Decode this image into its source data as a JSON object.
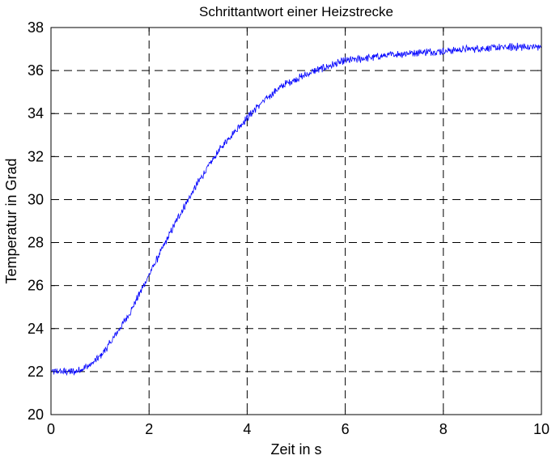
{
  "chart_data": {
    "type": "line",
    "title": "Schrittantwort einer Heizstrecke",
    "xlabel": "Zeit in s",
    "ylabel": "Temperatur in Grad",
    "xlim": [
      0,
      10
    ],
    "ylim": [
      20,
      38
    ],
    "xticks": [
      0,
      2,
      4,
      6,
      8,
      10
    ],
    "xtick_labels": [
      "0",
      "2",
      "4",
      "6",
      "8",
      "10"
    ],
    "yticks": [
      20,
      22,
      24,
      26,
      28,
      30,
      32,
      34,
      36,
      38
    ],
    "ytick_labels": [
      "20",
      "22",
      "24",
      "26",
      "28",
      "30",
      "32",
      "34",
      "36",
      "38"
    ],
    "grid": true,
    "legend": false,
    "series": [
      {
        "color": "#0000ff",
        "x": [
          0.0,
          0.5,
          0.8,
          1.0,
          1.2,
          1.4,
          1.6,
          1.8,
          2.0,
          2.2,
          2.4,
          2.6,
          2.8,
          3.0,
          3.2,
          3.4,
          3.6,
          3.8,
          4.0,
          4.2,
          4.4,
          4.6,
          4.8,
          5.0,
          5.2,
          5.4,
          5.6,
          5.8,
          6.0,
          6.5,
          7.0,
          7.5,
          8.0,
          8.5,
          9.0,
          9.5,
          10.0
        ],
        "y": [
          22.0,
          22.0,
          22.3,
          22.7,
          23.3,
          24.0,
          24.7,
          25.6,
          26.5,
          27.4,
          28.3,
          29.2,
          30.0,
          30.8,
          31.5,
          32.2,
          32.8,
          33.3,
          33.8,
          34.3,
          34.7,
          35.1,
          35.4,
          35.6,
          35.8,
          36.0,
          36.15,
          36.3,
          36.45,
          36.6,
          36.75,
          36.85,
          36.9,
          37.0,
          37.05,
          37.1,
          37.1
        ]
      }
    ]
  }
}
